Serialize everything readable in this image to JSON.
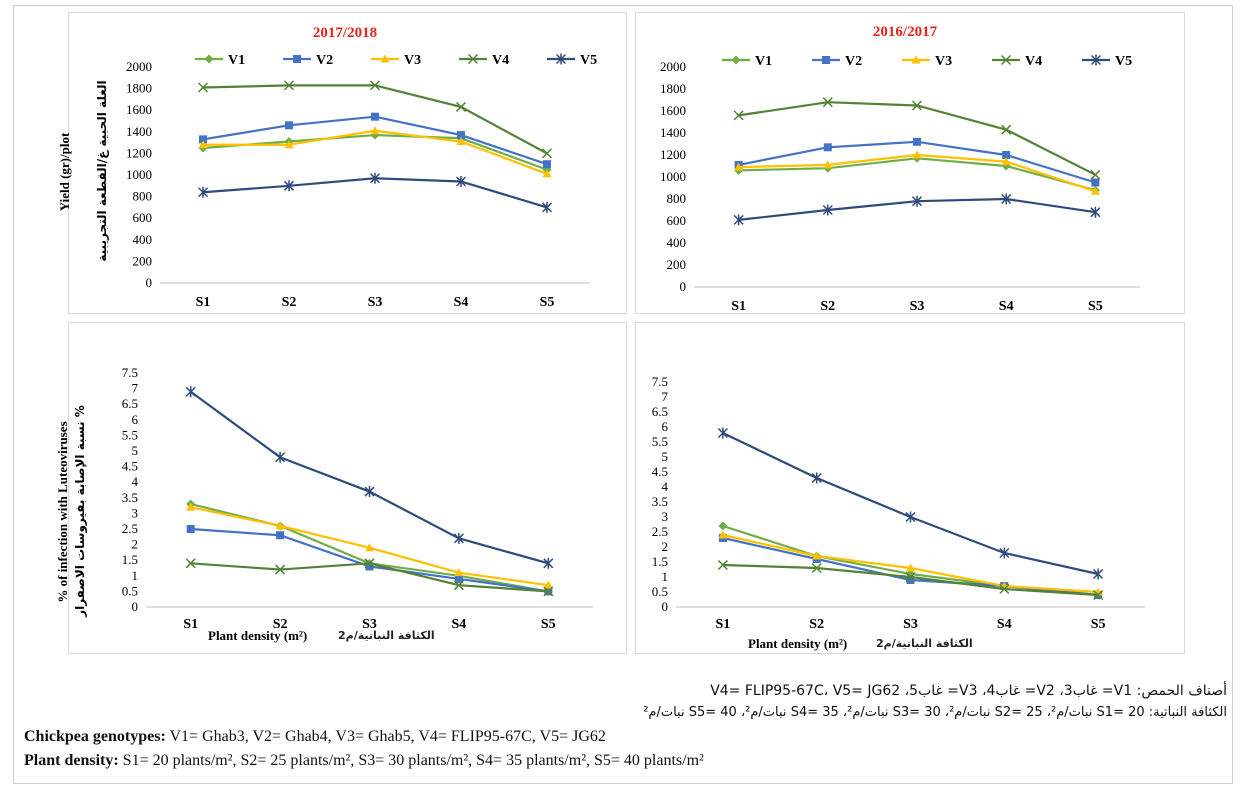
{
  "colors": {
    "V1": "#70ad47",
    "V2": "#4472c4",
    "V3": "#ffc000",
    "V4": "#548235",
    "V5": "#2f4b7c",
    "title": "#e8231b"
  },
  "markers": {
    "V1": "diamond",
    "V2": "square",
    "V3": "triangle",
    "V4": "x",
    "V5": "star"
  },
  "labels": {
    "yield_en": "Yield (gr)/plot",
    "yield_ar": "الغلة الحبية غ/القطعة التجريبية",
    "infection_en": "% of infection with Luteoviruses",
    "infection_ar": "نسبة الإصابة بفيروسات الاصفرار %",
    "density_en_left": "Plant density (m²)",
    "density_ar_left": "الكثافة النباتية/م2",
    "density_en_right": "Plant density (m²)",
    "density_ar_right": "الكثافة النباتية/م2"
  },
  "footer": {
    "ar_line1": "أصناف الحمص: V1= غاب3، V2= غاب4، V3= غاب5، V4= FLIP95-67C، V5= JG62",
    "ar_line2": "الكثافة النباتية: S1= 20 نبات/م²، S2= 25 نبات/م²، S3= 30 نبات/م²، S4= 35 نبات/م²، S5= 40 نبات/م²",
    "geno_label": "Chickpea genotypes:",
    "geno_text": " V1= Ghab3, V2= Ghab4, V3= Ghab5, V4= FLIP95-67C, V5= JG62",
    "density_label": "Plant density:",
    "density_text": " S1= 20 plants/m², S2= 25 plants/m², S3= 30 plants/m², S4= 35 plants/m², S5= 40 plants/m²"
  },
  "chart_data": [
    {
      "type": "line",
      "title": "2017/2018",
      "categories": [
        "S1",
        "S2",
        "S3",
        "S4",
        "S5"
      ],
      "yticks": [
        0,
        200,
        400,
        600,
        800,
        1000,
        1200,
        1400,
        1600,
        1800,
        2000
      ],
      "ylim": [
        0,
        2000
      ],
      "series": [
        {
          "name": "V1",
          "values": [
            1250,
            1310,
            1370,
            1340,
            1050
          ]
        },
        {
          "name": "V2",
          "values": [
            1330,
            1460,
            1540,
            1370,
            1100
          ]
        },
        {
          "name": "V3",
          "values": [
            1280,
            1280,
            1410,
            1310,
            1010
          ]
        },
        {
          "name": "V4",
          "values": [
            1810,
            1830,
            1830,
            1630,
            1200
          ]
        },
        {
          "name": "V5",
          "values": [
            840,
            900,
            970,
            940,
            700
          ]
        }
      ]
    },
    {
      "type": "line",
      "title": "2016/2017",
      "categories": [
        "S1",
        "S2",
        "S3",
        "S4",
        "S5"
      ],
      "yticks": [
        0,
        200,
        400,
        600,
        800,
        1000,
        1200,
        1400,
        1600,
        1800,
        2000
      ],
      "ylim": [
        0,
        2000
      ],
      "series": [
        {
          "name": "V1",
          "values": [
            1060,
            1080,
            1170,
            1100,
            880
          ]
        },
        {
          "name": "V2",
          "values": [
            1110,
            1270,
            1320,
            1200,
            950
          ]
        },
        {
          "name": "V3",
          "values": [
            1090,
            1110,
            1200,
            1140,
            870
          ]
        },
        {
          "name": "V4",
          "values": [
            1560,
            1680,
            1650,
            1430,
            1020
          ]
        },
        {
          "name": "V5",
          "values": [
            610,
            700,
            780,
            800,
            680
          ]
        }
      ]
    },
    {
      "type": "line",
      "title": "",
      "categories": [
        "S1",
        "S2",
        "S3",
        "S4",
        "S5"
      ],
      "yticks": [
        0,
        0.5,
        1,
        1.5,
        2,
        2.5,
        3,
        3.5,
        4,
        4.5,
        5,
        5.5,
        6,
        6.5,
        7,
        7.5
      ],
      "ylim": [
        0,
        7.5
      ],
      "series": [
        {
          "name": "V1",
          "values": [
            3.3,
            2.6,
            1.4,
            1.0,
            0.5
          ]
        },
        {
          "name": "V2",
          "values": [
            2.5,
            2.3,
            1.3,
            0.9,
            0.5
          ]
        },
        {
          "name": "V3",
          "values": [
            3.2,
            2.6,
            1.9,
            1.1,
            0.7
          ]
        },
        {
          "name": "V4",
          "values": [
            1.4,
            1.2,
            1.4,
            0.7,
            0.5
          ]
        },
        {
          "name": "V5",
          "values": [
            6.9,
            4.8,
            3.7,
            2.2,
            1.4
          ]
        }
      ]
    },
    {
      "type": "line",
      "title": "",
      "categories": [
        "S1",
        "S2",
        "S3",
        "S4",
        "S5"
      ],
      "yticks": [
        0,
        0.5,
        1,
        1.5,
        2,
        2.5,
        3,
        3.5,
        4,
        4.5,
        5,
        5.5,
        6,
        6.5,
        7,
        7.5
      ],
      "ylim": [
        0,
        7.5
      ],
      "series": [
        {
          "name": "V1",
          "values": [
            2.7,
            1.7,
            1.1,
            0.7,
            0.4
          ]
        },
        {
          "name": "V2",
          "values": [
            2.3,
            1.6,
            0.9,
            0.7,
            0.4
          ]
        },
        {
          "name": "V3",
          "values": [
            2.4,
            1.7,
            1.3,
            0.7,
            0.5
          ]
        },
        {
          "name": "V4",
          "values": [
            1.4,
            1.3,
            1.0,
            0.6,
            0.4
          ]
        },
        {
          "name": "V5",
          "values": [
            5.8,
            4.3,
            3.0,
            1.8,
            1.1
          ]
        }
      ]
    }
  ]
}
